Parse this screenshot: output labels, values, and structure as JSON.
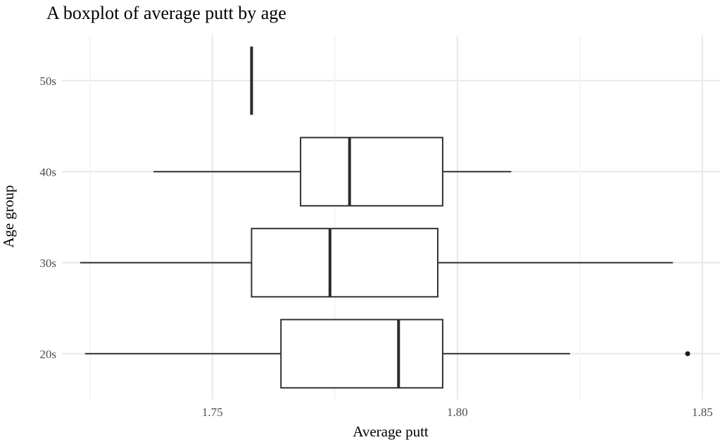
{
  "chart_data": {
    "type": "boxplot",
    "orientation": "horizontal",
    "title": "A boxplot of average putt by age",
    "xlabel": "Average putt",
    "ylabel": "Age group",
    "categories": [
      "20s",
      "30s",
      "40s",
      "50s"
    ],
    "x_ticks": [
      1.75,
      1.8,
      1.85
    ],
    "x_tick_labels": [
      "1.75",
      "1.80",
      "1.85"
    ],
    "x_minor_ticks": [
      1.725,
      1.775,
      1.825
    ],
    "xlim": [
      1.7193,
      1.8536
    ],
    "grid": true,
    "legend": false,
    "series": [
      {
        "category": "20s",
        "whisker_low": 1.724,
        "q1": 1.764,
        "median": 1.788,
        "q3": 1.797,
        "whisker_high": 1.823,
        "outliers": [
          1.847
        ]
      },
      {
        "category": "30s",
        "whisker_low": 1.723,
        "q1": 1.758,
        "median": 1.774,
        "q3": 1.796,
        "whisker_high": 1.844,
        "outliers": []
      },
      {
        "category": "40s",
        "whisker_low": 1.738,
        "q1": 1.768,
        "median": 1.778,
        "q3": 1.797,
        "whisker_high": 1.811,
        "outliers": []
      },
      {
        "category": "50s",
        "whisker_low": 1.758,
        "q1": 1.758,
        "median": 1.758,
        "q3": 1.758,
        "whisker_high": 1.758,
        "outliers": []
      }
    ],
    "colors": {
      "background": "#ffffff",
      "box_fill": "#ffffff",
      "box_stroke": "#333333",
      "median_stroke": "#2b2b2b",
      "outlier_fill": "#1a1a1a",
      "grid_major": "#e8e8e8",
      "grid_minor": "#f2f2f2",
      "tick_label": "#4d4d4d",
      "axis_title": "#000000",
      "title": "#000000"
    }
  }
}
